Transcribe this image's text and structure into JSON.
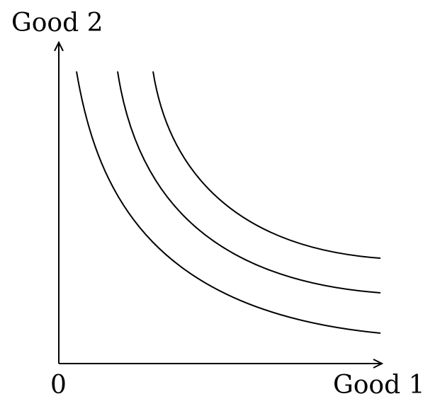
{
  "diagram": {
    "y_axis_label": "Good 2",
    "x_axis_label": "Good 1",
    "origin_label": "0",
    "curves": [
      {
        "name": "indifference-curve-1"
      },
      {
        "name": "indifference-curve-2"
      },
      {
        "name": "indifference-curve-3"
      }
    ],
    "line_color": "#000000",
    "background_color": "#ffffff"
  }
}
